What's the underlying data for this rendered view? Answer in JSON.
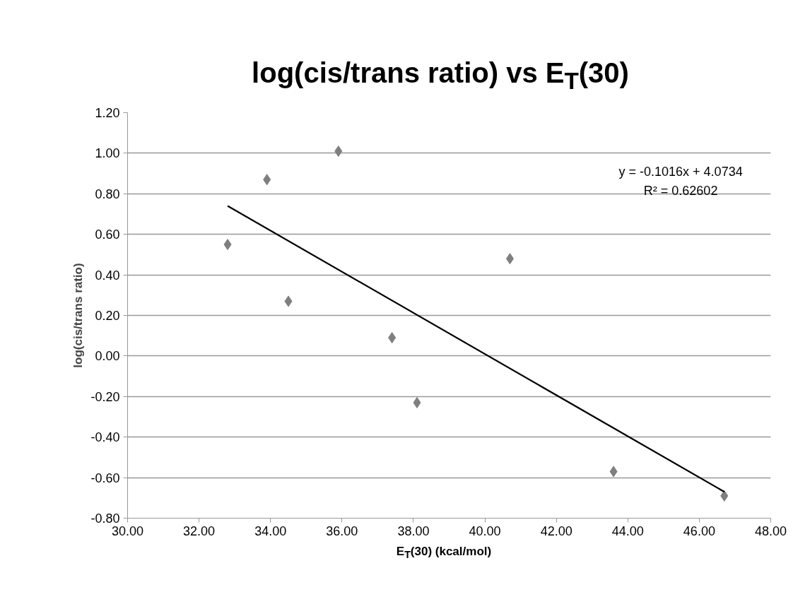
{
  "chart_data": {
    "type": "scatter",
    "title": "log(cis/trans ratio) vs E$_{T}$(30)",
    "xlabel": "E$_{T}$(30) (kcal/mol)",
    "ylabel": "log(cis/trans ratio)",
    "xlim": [
      30,
      48
    ],
    "xticks": [
      {
        "value": 30,
        "label": "30.00"
      },
      {
        "value": 32,
        "label": "32.00"
      },
      {
        "value": 34,
        "label": "34.00"
      },
      {
        "value": 36,
        "label": "36.00"
      },
      {
        "value": 38,
        "label": "38.00"
      },
      {
        "value": 40,
        "label": "40.00"
      },
      {
        "value": 42,
        "label": "42.00"
      },
      {
        "value": 44,
        "label": "44.00"
      },
      {
        "value": 46,
        "label": "46.00"
      },
      {
        "value": 48,
        "label": "48.00"
      }
    ],
    "ylim": [
      -0.8,
      1.2
    ],
    "yticks": [
      {
        "value": -0.8,
        "label": "-0.80"
      },
      {
        "value": -0.6,
        "label": "-0.60"
      },
      {
        "value": -0.4,
        "label": "-0.40"
      },
      {
        "value": -0.2,
        "label": "-0.20"
      },
      {
        "value": 0,
        "label": "0.00"
      },
      {
        "value": 0.2,
        "label": "0.20"
      },
      {
        "value": 0.4,
        "label": "0.40"
      },
      {
        "value": 0.6,
        "label": "0.60"
      },
      {
        "value": 0.8,
        "label": "0.80"
      },
      {
        "value": 1.0,
        "label": "1.00"
      },
      {
        "value": 1.2,
        "label": "1.20"
      }
    ],
    "grid": "y",
    "series": [
      {
        "marker": "diamond",
        "color": "#7f7f7f",
        "x": [
          32.8,
          33.9,
          34.5,
          35.9,
          37.4,
          38.1,
          40.7,
          43.6,
          46.7
        ],
        "values": [
          0.55,
          0.87,
          0.27,
          1.01,
          0.09,
          -0.23,
          0.48,
          -0.57,
          -0.69
        ]
      },
      {
        "type": "line",
        "marker": "none",
        "color": "#000000",
        "line_style": "solid",
        "x": [
          32.8,
          46.7
        ],
        "values": [
          0.74,
          -0.67
        ]
      }
    ],
    "annotations": [
      "y = -0.1016x + 4.0734",
      "R² = 0.62602"
    ]
  }
}
